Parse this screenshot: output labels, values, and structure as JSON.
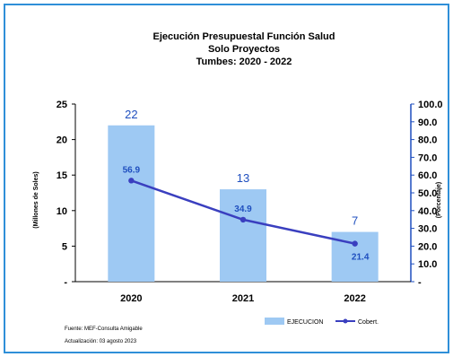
{
  "chart_data": {
    "type": "bar",
    "title": "Ejecución Presupuestal Función Salud",
    "subtitle": "Solo Proyectos",
    "subtitle2": "Tumbes: 2020 - 2022",
    "categories": [
      "2020",
      "2021",
      "2022"
    ],
    "series": [
      {
        "name": "EJECUCION",
        "type": "bar",
        "axis": "left",
        "values": [
          22,
          13,
          7
        ],
        "labels": [
          "22",
          "13",
          "7"
        ],
        "color": "#9ec9f3"
      },
      {
        "name": "Cobert.",
        "type": "line",
        "axis": "right",
        "values": [
          56.9,
          34.9,
          21.4
        ],
        "labels": [
          "56.9",
          "34.9",
          "21.4"
        ],
        "color": "#3a3fbf"
      }
    ],
    "ylabel": "(Millones de Soles)",
    "y2label": "(Porcentaje)",
    "ylim": [
      0,
      25
    ],
    "y2lim": [
      0,
      100
    ],
    "yticks": [
      "-",
      "5",
      "10",
      "15",
      "20",
      "25"
    ],
    "y2ticks": [
      "-",
      "10.0",
      "20.0",
      "30.0",
      "40.0",
      "50.0",
      "60.0",
      "70.0",
      "80.0",
      "90.0",
      "100.0"
    ],
    "legend_position": "bottom-right",
    "grid": false
  },
  "notes": {
    "source": "Fuente: MEF-Consulta Amigable",
    "updated": "Actualización: 03 agosto 2023"
  }
}
